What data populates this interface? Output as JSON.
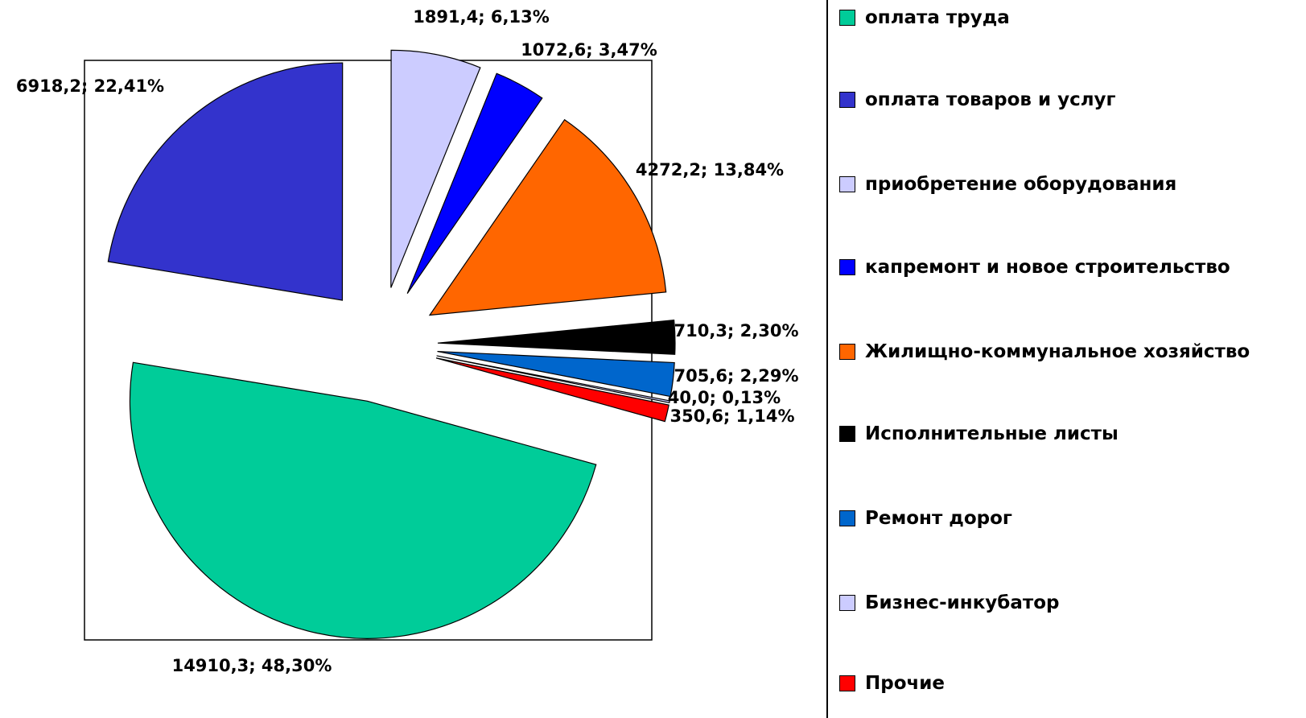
{
  "chart_data": {
    "type": "pie",
    "categories": [
      "оплата труда",
      "оплата товаров и услуг",
      "приобретение оборудования",
      "капремонт и новое строительство",
      "Жилищно-коммунальное хозяйство",
      "Исполнительные листы",
      "Ремонт дорог",
      "Бизнес-инкубатор",
      "Прочие"
    ],
    "values": [
      14910.3,
      6918.2,
      1891.4,
      1072.6,
      4272.2,
      710.3,
      705.6,
      40.0,
      350.6
    ],
    "value_labels": [
      "14910,3; 48,30%",
      "6918,2; 22,41%",
      "1891,4; 6,13%",
      "1072,6; 3,47%",
      "4272,2; 13,84%",
      "710,3; 2,30%",
      "705,6; 2,29%",
      "40,0; 0,13%",
      "350,6; 1,14%"
    ],
    "colors": [
      "#00CC99",
      "#3333CC",
      "#CCCCFF",
      "#0000FF",
      "#FF6600",
      "#000000",
      "#0066CC",
      "#CCCCFF",
      "#FF0000"
    ],
    "legend": "right"
  }
}
